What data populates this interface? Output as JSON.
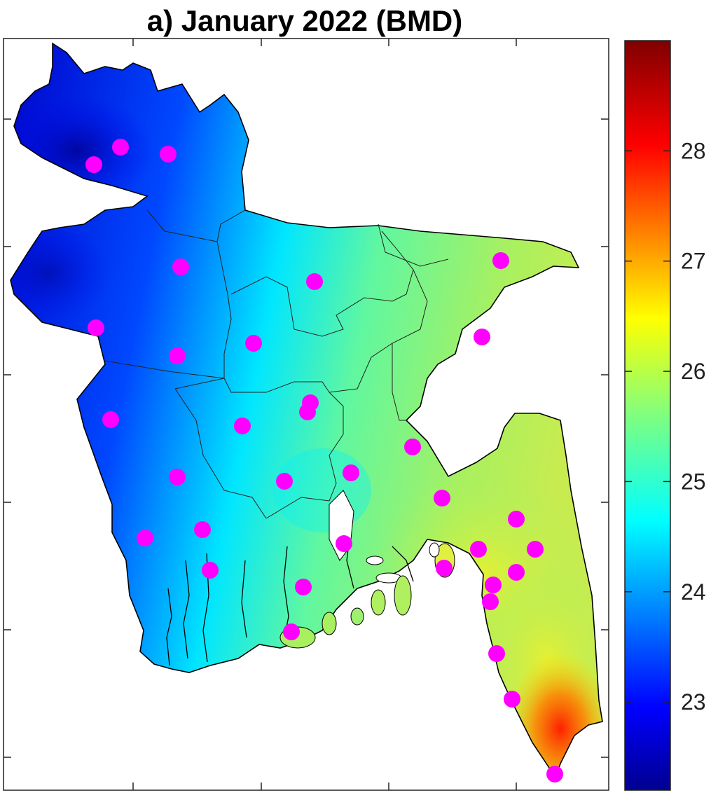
{
  "title": "a) January 2022 (BMD)",
  "colorbar": {
    "colormap": "jet",
    "range": [
      22.2,
      29.0
    ],
    "ticks": [
      {
        "value": 23,
        "label": "23"
      },
      {
        "value": 24,
        "label": "24"
      },
      {
        "value": 25,
        "label": "25"
      },
      {
        "value": 26,
        "label": "26"
      },
      {
        "value": 27,
        "label": "27"
      },
      {
        "value": 28,
        "label": "28"
      }
    ]
  },
  "colors": {
    "station_marker": "#ff00ff",
    "boundary": "#000000"
  },
  "map": {
    "region": "Bangladesh",
    "variable_field": "interpolated surface",
    "station_count": 35
  }
}
